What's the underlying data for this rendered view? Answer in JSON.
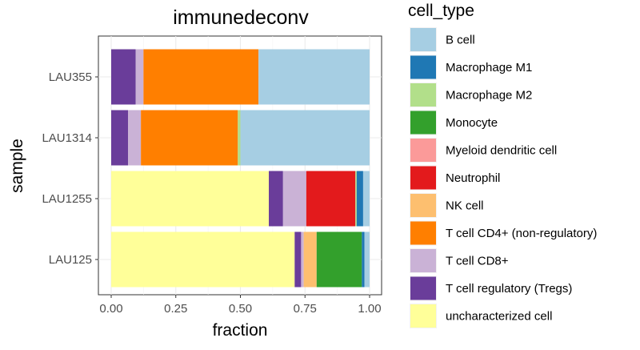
{
  "chart_data": {
    "type": "bar",
    "orientation": "horizontal",
    "stacked": true,
    "title": "immunedeconv",
    "xlabel": "fraction",
    "ylabel": "sample",
    "xlim": [
      0,
      1
    ],
    "x_ticks": [
      "0.00",
      "0.25",
      "0.50",
      "0.75",
      "1.00"
    ],
    "x_tick_values": [
      0,
      0.25,
      0.5,
      0.75,
      1.0
    ],
    "grid": true,
    "legend_title": "cell_type",
    "legend_position": "right",
    "categories": [
      "LAU355",
      "LAU1314",
      "LAU1255",
      "LAU125"
    ],
    "series": [
      {
        "name": "uncharacterized cell",
        "color": "#FFFF99",
        "values": [
          0.0,
          0.0,
          0.61,
          0.71
        ]
      },
      {
        "name": "T cell regulatory (Tregs)",
        "color": "#6A3D9A",
        "values": [
          0.095,
          0.065,
          0.055,
          0.025
        ]
      },
      {
        "name": "T cell CD8+",
        "color": "#CAB2D6",
        "values": [
          0.03,
          0.05,
          0.09,
          0.01
        ]
      },
      {
        "name": "T cell CD4+ (non-regulatory)",
        "color": "#FF7F00",
        "values": [
          0.445,
          0.375,
          0.0,
          0.0
        ]
      },
      {
        "name": "NK cell",
        "color": "#FDBF6F",
        "values": [
          0.0,
          0.0,
          0.0,
          0.05
        ]
      },
      {
        "name": "Neutrophil",
        "color": "#E31A1C",
        "values": [
          0.0,
          0.0,
          0.19,
          0.0
        ]
      },
      {
        "name": "Myeloid dendritic cell",
        "color": "#FB9A99",
        "values": [
          0.0,
          0.0,
          0.0,
          0.0
        ]
      },
      {
        "name": "Monocyte",
        "color": "#33A02C",
        "values": [
          0.0,
          0.0,
          0.0,
          0.175
        ]
      },
      {
        "name": "Macrophage M2",
        "color": "#B2DF8A",
        "values": [
          0.0,
          0.01,
          0.005,
          0.0
        ]
      },
      {
        "name": "Macrophage M1",
        "color": "#1F78B4",
        "values": [
          0.0,
          0.0,
          0.025,
          0.01
        ]
      },
      {
        "name": "B cell",
        "color": "#A6CEE3",
        "values": [
          0.43,
          0.5,
          0.025,
          0.02
        ]
      }
    ],
    "legend_order": [
      "B cell",
      "Macrophage M1",
      "Macrophage M2",
      "Monocyte",
      "Myeloid dendritic cell",
      "Neutrophil",
      "NK cell",
      "T cell CD4+ (non-regulatory)",
      "T cell CD8+",
      "T cell regulatory (Tregs)",
      "uncharacterized cell"
    ]
  }
}
